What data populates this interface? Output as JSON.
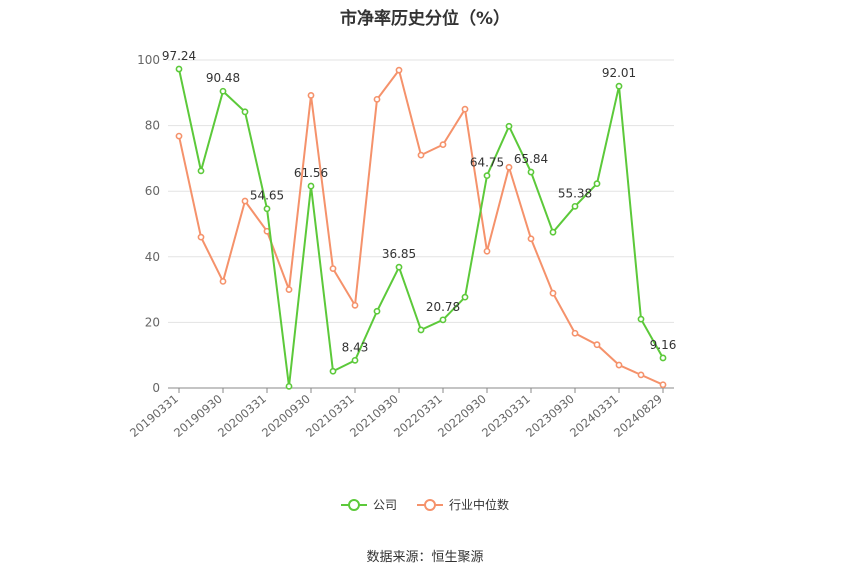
{
  "chart_data": {
    "type": "line",
    "title": "市净率历史分位（%）",
    "ylim": [
      0,
      100
    ],
    "yticks": [
      0,
      20,
      40,
      60,
      80,
      100
    ],
    "x": [
      "20190331",
      "20190630",
      "20190930",
      "20191231",
      "20200331",
      "20200630",
      "20200930",
      "20201231",
      "20210331",
      "20210630",
      "20210930",
      "20211231",
      "20220331",
      "20220630",
      "20220930",
      "20221231",
      "20230331",
      "20230630",
      "20230930",
      "20231231",
      "20240331",
      "20240630",
      "20240829"
    ],
    "xtick_labels": [
      "20190331",
      "20190930",
      "20200331",
      "20200930",
      "20210331",
      "20210930",
      "20220331",
      "20220930",
      "20230331",
      "20230930",
      "20240331",
      "20240829"
    ],
    "grid": true,
    "legend_position": "bottom",
    "series": [
      {
        "name": "公司",
        "color": "#5cc93a",
        "values": [
          97.24,
          66.2,
          90.48,
          84.2,
          54.65,
          0.5,
          61.56,
          5.1,
          8.43,
          23.4,
          36.85,
          17.7,
          20.78,
          27.7,
          64.75,
          79.8,
          65.84,
          47.5,
          55.38,
          62.3,
          92.01,
          21.0,
          9.16
        ],
        "labels": [
          "97.24",
          "",
          "90.48",
          "",
          "54.65",
          "",
          "61.56",
          "",
          "8.43",
          "",
          "36.85",
          "",
          "20.78",
          "",
          "64.75",
          "",
          "65.84",
          "",
          "55.38",
          "",
          "92.01",
          "",
          "9.16"
        ]
      },
      {
        "name": "行业中位数",
        "color": "#f5926b",
        "values": [
          76.8,
          46.0,
          32.5,
          57.0,
          47.8,
          30.0,
          89.2,
          36.4,
          25.2,
          88.0,
          96.9,
          71.0,
          74.2,
          85.0,
          41.7,
          67.3,
          45.5,
          28.9,
          16.7,
          13.2,
          7.0,
          4.0,
          1.0
        ]
      }
    ]
  },
  "source_text": "数据来源：恒生聚源"
}
